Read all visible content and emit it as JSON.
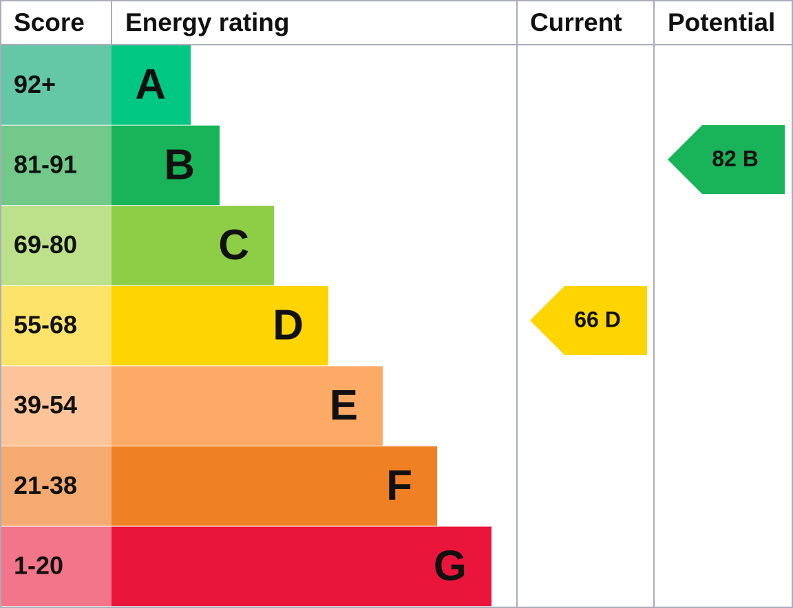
{
  "header": {
    "score": "Score",
    "energy_rating": "Energy rating",
    "current": "Current",
    "potential": "Potential"
  },
  "bands": [
    {
      "score": "92+",
      "letter": "A"
    },
    {
      "score": "81-91",
      "letter": "B"
    },
    {
      "score": "69-80",
      "letter": "C"
    },
    {
      "score": "55-68",
      "letter": "D"
    },
    {
      "score": "39-54",
      "letter": "E"
    },
    {
      "score": "21-38",
      "letter": "F"
    },
    {
      "score": "1-20",
      "letter": "G"
    }
  ],
  "current": "66 D",
  "potential": "82 B"
}
